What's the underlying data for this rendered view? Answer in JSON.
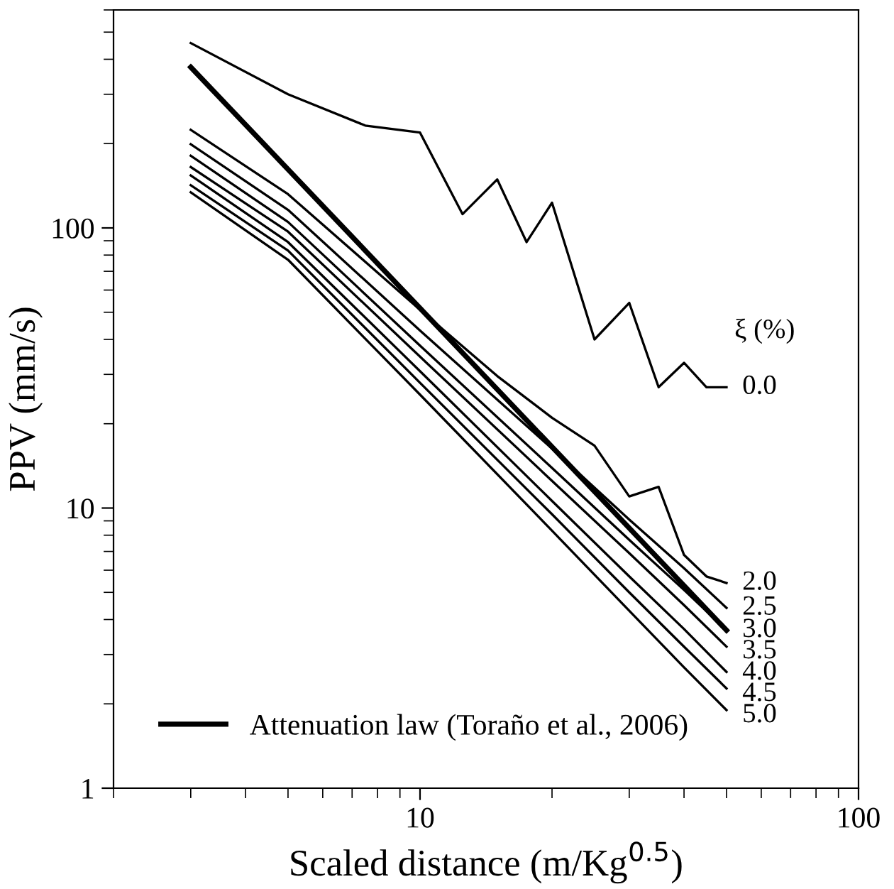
{
  "chart_data": {
    "type": "line",
    "xlabel": "Scaled distance (m/Kg$^{0.5}$)",
    "ylabel": "PPV (mm/s)",
    "log": "xy",
    "xlim": [
      2,
      100
    ],
    "ylim": [
      1,
      600
    ],
    "xticks": [
      10,
      100
    ],
    "yticks": [
      1,
      10,
      100
    ],
    "legend": "bottom left",
    "grid": false,
    "annotations": [
      "ξ (%)",
      "0.0",
      "2.0",
      "2.5",
      "3.0",
      "3.5",
      "4.0",
      "4.5",
      "5.0"
    ],
    "series": [
      {
        "color": "#000000",
        "x": [
          3,
          5,
          7.5,
          10,
          12.5,
          15,
          17.5,
          20,
          25,
          30,
          35,
          40,
          45,
          50
        ],
        "values": [
          457,
          300,
          232,
          219,
          112,
          149,
          89,
          123,
          40,
          54,
          27,
          33,
          27,
          27
        ]
      },
      {
        "color": "#000000",
        "x": [
          3,
          5,
          10,
          15,
          20,
          25,
          30,
          35,
          40,
          45,
          50
        ],
        "values": [
          224,
          132,
          51,
          29.6,
          21,
          16.7,
          11,
          11.9,
          6.8,
          5.7,
          5.4
        ]
      },
      {
        "color": "#000000",
        "x": [
          3,
          5,
          10,
          20,
          30,
          40,
          50
        ],
        "values": [
          199,
          116,
          43,
          16.3,
          9.1,
          6.1,
          4.4
        ]
      },
      {
        "color": "#000000",
        "x": [
          3,
          5,
          10,
          20,
          30,
          40,
          50
        ],
        "values": [
          181,
          105,
          38,
          13.9,
          7.7,
          5.1,
          3.66
        ]
      },
      {
        "color": "#000000",
        "x": [
          3,
          5,
          10,
          20,
          30,
          40,
          50
        ],
        "values": [
          165,
          97,
          34.7,
          12.5,
          6.9,
          4.5,
          3.2
        ]
      },
      {
        "color": "#000000",
        "x": [
          3,
          5,
          10,
          20,
          30,
          40,
          50
        ],
        "values": [
          154,
          89,
          30.8,
          10.6,
          5.7,
          3.7,
          2.6
        ]
      },
      {
        "color": "#000000",
        "x": [
          3,
          5,
          10,
          20,
          30,
          40,
          50
        ],
        "values": [
          142,
          83,
          28,
          9.5,
          5.0,
          3.2,
          2.27
        ]
      },
      {
        "color": "#000000",
        "x": [
          3,
          5,
          10,
          20,
          30,
          40,
          50
        ],
        "values": [
          134,
          77,
          25.4,
          8.3,
          4.3,
          2.7,
          1.9
        ]
      },
      {
        "name": "Attenuation law (Toraño et al., 2006)",
        "color": "#000000",
        "x": [
          3,
          50
        ],
        "values": [
          375,
          3.66
        ]
      }
    ]
  }
}
